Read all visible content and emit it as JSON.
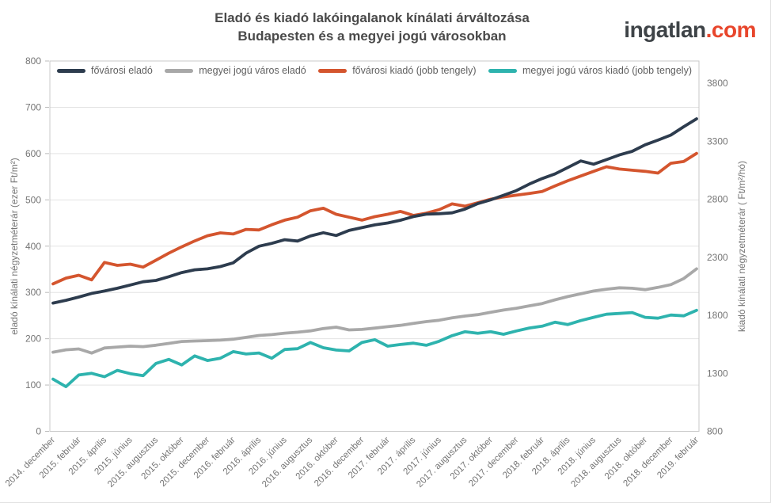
{
  "header": {
    "title_line1": "Eladó és kiadó lakóingalanok kínálati árváltozása",
    "title_line2": "Budapesten és a megyei jogú városokban",
    "logo_name": "ingatlan",
    "logo_tld": ".com"
  },
  "colors": {
    "title_text": "#4a4a4a",
    "logo_dark": "#3e4347",
    "logo_accent": "#e8462c",
    "grid": "#e3e3e3",
    "frame": "#c9c9c9",
    "tick_text": "#757575",
    "axis_title_text": "#757575",
    "legend_text": "#5f5f5f"
  },
  "chart_data": {
    "type": "line",
    "title": "Eladó és kiadó lakóingalanok kínálati árváltozása Budapesten és a megyei jogú városokban",
    "grid": "horizontal",
    "legend_position": "top",
    "x_tick_labels": [
      "2014. december",
      "2015. február",
      "2015. április",
      "2015. június",
      "2015. augusztus",
      "2015. október",
      "2015. december",
      "2016. február",
      "2016. április",
      "2016. június",
      "2016. augusztus",
      "2016. október",
      "2016. december",
      "2017. február",
      "2017. április",
      "2017. június",
      "2017. augusztus",
      "2017. október",
      "2017. december",
      "2018. február",
      "2018. április",
      "2018. június",
      "2018. augusztus",
      "2018. október",
      "2018. december",
      "2019. február"
    ],
    "x_months_per_tick": 2,
    "x_points_total": 51,
    "axes": {
      "left": {
        "label": "eladó kínálati négyzetméterár (ezer Ft/m²)",
        "range": [
          0,
          800
        ],
        "ticks": [
          0,
          100,
          200,
          300,
          400,
          500,
          600,
          700,
          800
        ]
      },
      "right": {
        "label": "kiadó kínálati négyzetméterár ( Ft/m²/hó)",
        "range": [
          800,
          3800
        ],
        "ticks": [
          800,
          1300,
          1800,
          2300,
          2800,
          3300,
          3800
        ]
      }
    },
    "series": [
      {
        "name": "fovarosi-elado",
        "label": "fővárosi eladó",
        "color": "#2d3c4e",
        "axis": "left",
        "values": [
          277,
          283,
          290,
          298,
          303,
          309,
          316,
          323,
          326,
          334,
          343,
          349,
          351,
          356,
          364,
          385,
          400,
          406,
          414,
          411,
          422,
          429,
          423,
          434,
          440,
          446,
          450,
          456,
          464,
          469,
          470,
          472,
          480,
          492,
          500,
          510,
          520,
          534,
          546,
          556,
          570,
          584,
          577,
          587,
          597,
          605,
          619,
          629,
          640,
          658,
          675
        ]
      },
      {
        "name": "megyei-jogu-varos-elado",
        "label": "megyei jogú város eladó",
        "color": "#a8a8a8",
        "axis": "left",
        "values": [
          171,
          176,
          178,
          169,
          180,
          182,
          184,
          183,
          186,
          190,
          194,
          195,
          196,
          197,
          199,
          203,
          207,
          209,
          212,
          214,
          217,
          222,
          225,
          219,
          220,
          223,
          226,
          229,
          233,
          237,
          240,
          245,
          249,
          252,
          257,
          262,
          266,
          271,
          276,
          284,
          291,
          297,
          303,
          307,
          310,
          309,
          306,
          311,
          317,
          330,
          351
        ]
      },
      {
        "name": "fovarosi-kiado",
        "label": "fővárosi kiadó (jobb tengely)",
        "color": "#d4552e",
        "axis": "right",
        "values": [
          2070,
          2120,
          2145,
          2105,
          2255,
          2230,
          2240,
          2215,
          2275,
          2335,
          2390,
          2440,
          2485,
          2510,
          2500,
          2540,
          2535,
          2580,
          2620,
          2645,
          2700,
          2722,
          2670,
          2645,
          2620,
          2650,
          2670,
          2695,
          2660,
          2680,
          2710,
          2760,
          2740,
          2770,
          2800,
          2820,
          2835,
          2850,
          2866,
          2914,
          2960,
          3000,
          3040,
          3080,
          3060,
          3050,
          3040,
          3025,
          3110,
          3125,
          3195
        ]
      },
      {
        "name": "megyei-jogu-varos-kiado",
        "label": "megyei jogú város kiadó (jobb tengely)",
        "color": "#2eb3ae",
        "axis": "right",
        "values": [
          1250,
          1185,
          1285,
          1300,
          1270,
          1325,
          1297,
          1280,
          1385,
          1420,
          1372,
          1450,
          1410,
          1430,
          1487,
          1466,
          1475,
          1430,
          1505,
          1512,
          1565,
          1520,
          1500,
          1493,
          1565,
          1590,
          1534,
          1548,
          1560,
          1541,
          1576,
          1624,
          1658,
          1645,
          1658,
          1636,
          1665,
          1690,
          1706,
          1740,
          1720,
          1754,
          1782,
          1809,
          1816,
          1823,
          1782,
          1775,
          1802,
          1795,
          1843
        ]
      }
    ]
  }
}
